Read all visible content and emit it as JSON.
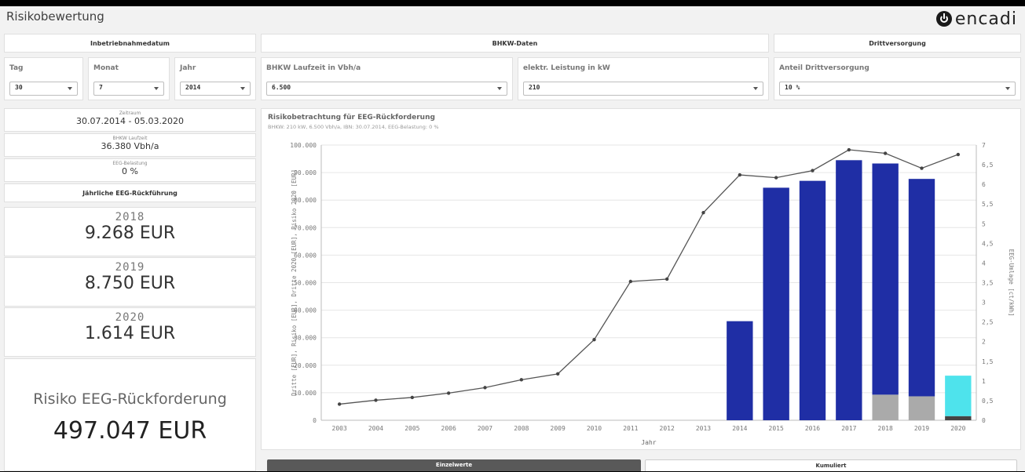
{
  "app": {
    "title": "Risikobewertung",
    "logo_text": "encadi"
  },
  "sections": {
    "inbetriebnahme": "Inbetriebnahmedatum",
    "bhkw": "BHKW-Daten",
    "dritt": "Drittversorgung"
  },
  "filters": {
    "tag": {
      "label": "Tag",
      "value": "30"
    },
    "monat": {
      "label": "Monat",
      "value": "7"
    },
    "jahr": {
      "label": "Jahr",
      "value": "2014"
    },
    "laufzeit": {
      "label": "BHKW Laufzeit in Vbh/a",
      "value": "6.500"
    },
    "leistung": {
      "label": "elektr. Leistung in kW",
      "value": "210"
    },
    "anteil": {
      "label": "Anteil Drittversorgung",
      "value": "10 %"
    }
  },
  "kpis": {
    "zeitraum": {
      "label": "Zeitraum",
      "value": "30.07.2014 - 05.03.2020"
    },
    "laufzeit": {
      "label": "BHKW Laufzeit",
      "value": "36.380 Vbh/a"
    },
    "belastung": {
      "label": "EEG-Belastung",
      "value": "0 %"
    }
  },
  "annual": {
    "header": "Jährliche EEG-Rückführung",
    "items": [
      {
        "year": "2018",
        "amount": "9.268 EUR"
      },
      {
        "year": "2019",
        "amount": "8.750 EUR"
      },
      {
        "year": "2020",
        "amount": "1.614 EUR"
      }
    ]
  },
  "risk_total": {
    "label": "Risiko EEG-Rückforderung",
    "value": "497.047 EUR"
  },
  "chart": {
    "title": "Risikobetrachtung für EEG-Rückforderung",
    "subtitle": "BHKW: 210 kW, 6.500 Vbh/a, IBN: 30.07.2014, EEG-Belastung: 0 %"
  },
  "chart_data": {
    "type": "bar",
    "categories": [
      "2003",
      "2004",
      "2005",
      "2006",
      "2007",
      "2008",
      "2009",
      "2010",
      "2011",
      "2012",
      "2013",
      "2014",
      "2015",
      "2016",
      "2017",
      "2018",
      "2019",
      "2020"
    ],
    "series": [
      {
        "name": "Dritte [EUR]",
        "values": [
          0,
          0,
          0,
          0,
          0,
          0,
          0,
          0,
          0,
          0,
          0,
          0,
          0,
          0,
          0,
          0,
          0,
          1500
        ]
      },
      {
        "name": "Risiko [EUR]",
        "values": [
          0,
          0,
          0,
          0,
          0,
          0,
          0,
          0,
          0,
          0,
          0,
          36000,
          84500,
          87000,
          94500,
          84000,
          79000,
          0
        ]
      },
      {
        "name": "Dritte 2020 [EUR]",
        "values": [
          0,
          0,
          0,
          0,
          0,
          0,
          0,
          0,
          0,
          0,
          0,
          0,
          0,
          0,
          0,
          9300,
          8700,
          0
        ]
      },
      {
        "name": "Risiko 2020 [EUR]",
        "values": [
          0,
          0,
          0,
          0,
          0,
          0,
          0,
          0,
          0,
          0,
          0,
          0,
          0,
          0,
          0,
          0,
          0,
          14700
        ]
      },
      {
        "name": "EEG-Umlage [ct/kWh]",
        "axis": "right",
        "values": [
          0.41,
          0.51,
          0.58,
          0.69,
          0.83,
          1.03,
          1.18,
          2.05,
          3.53,
          3.59,
          5.28,
          6.24,
          6.17,
          6.35,
          6.88,
          6.79,
          6.41,
          6.76
        ]
      }
    ],
    "colors": {
      "risiko": "#1f2ea5",
      "dritte_2020": "#aaaaaa",
      "risiko_2020": "#4ee3ec",
      "dritte": "#444444",
      "line": "#555555"
    },
    "xlabel": "Jahr",
    "ylabel": "Dritte [EUR], Risiko [EUR], Dritte 2020 [EUR], Risiko 2020 [EUR]",
    "ylabel_right": "EEG-Umlage [ct/kWh]",
    "ylim": [
      0,
      100000
    ],
    "ylim_right": [
      0,
      7
    ],
    "yticks": [
      "0",
      "10.000",
      "20.000",
      "30.000",
      "40.000",
      "50.000",
      "60.000",
      "70.000",
      "80.000",
      "90.000",
      "100.000"
    ],
    "yticks_right": [
      "0",
      "0,5",
      "1",
      "1,5",
      "2",
      "2,5",
      "3",
      "3,5",
      "4",
      "4,5",
      "5",
      "5,5",
      "6",
      "6,5",
      "7"
    ],
    "grid": true
  },
  "tabs": {
    "einzel": "Einzelwerte",
    "kumuliert": "Kumuliert"
  }
}
